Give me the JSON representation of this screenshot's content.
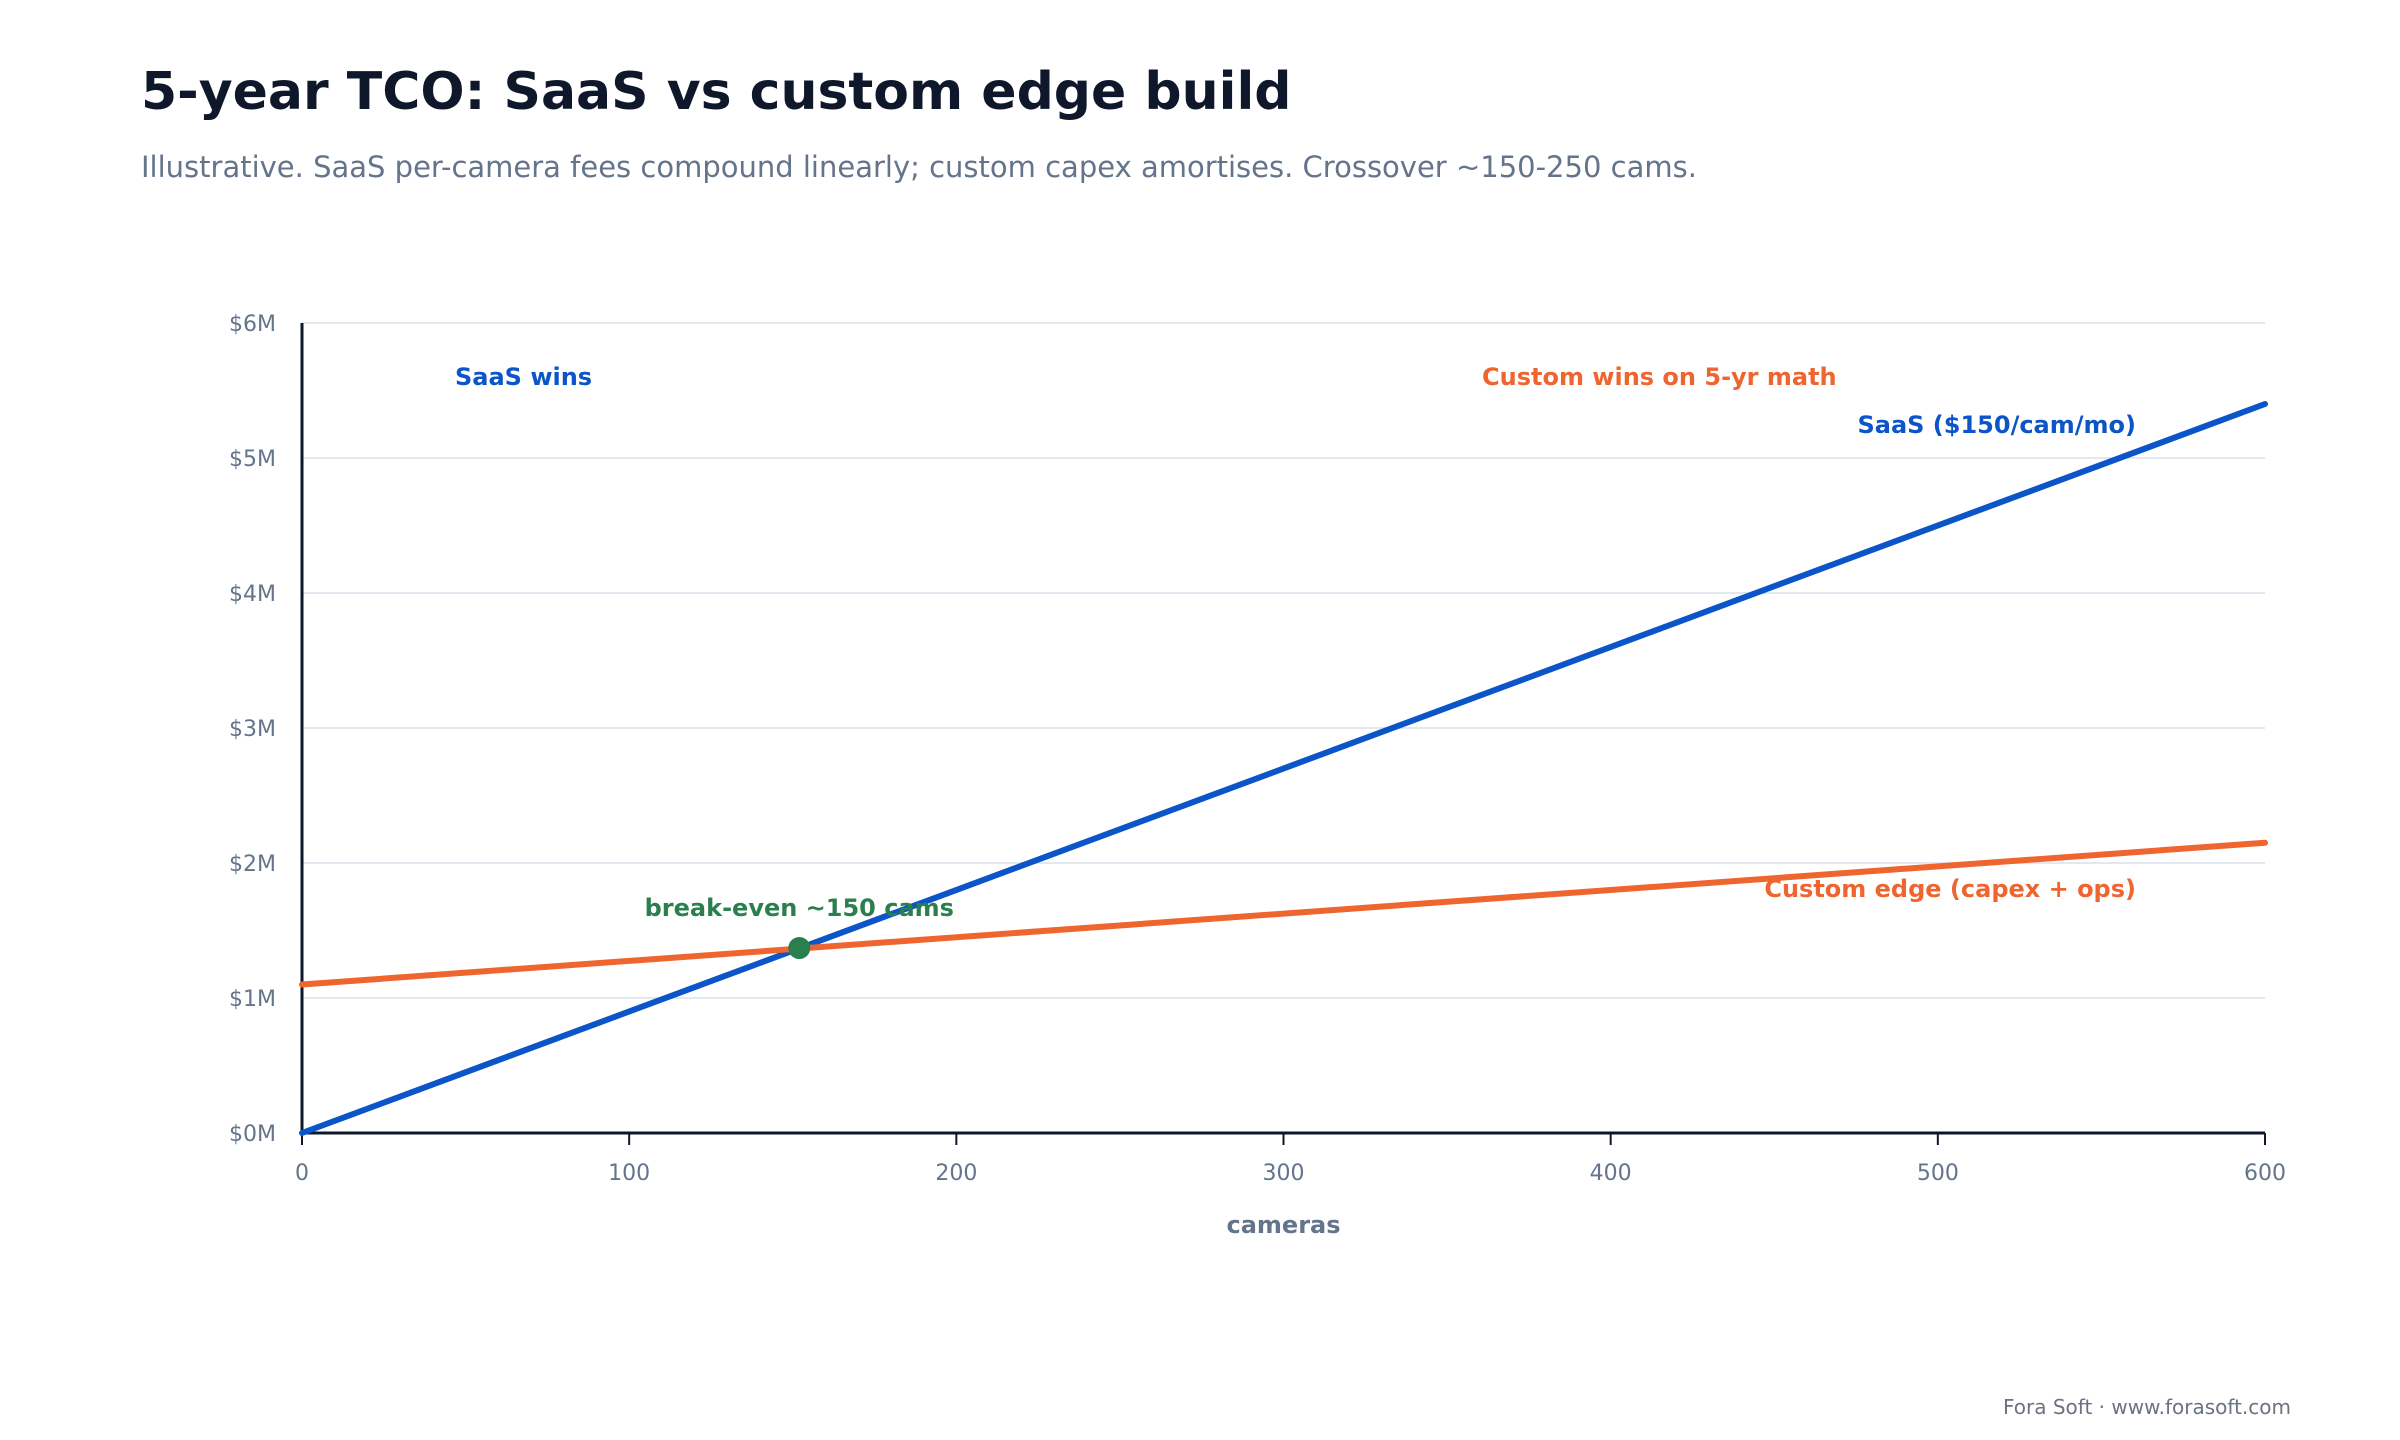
{
  "title": "5-year TCO: SaaS vs custom edge build",
  "subtitle": "Illustrative. SaaS per-camera fees compound linearly; custom capex amortises. Crossover ~150-250 cams.",
  "footer": "Fora Soft · www.forasoft.com",
  "colors": {
    "saas": "#0b55c9",
    "custom": "#ef6530",
    "breakeven": "#2a7f4f",
    "axis": "#0f172a",
    "grid": "#e2e8f0",
    "muted": "#64748b"
  },
  "chart_data": {
    "type": "line",
    "xlabel": "cameras",
    "ylabel": "",
    "xlim": [
      0,
      600
    ],
    "ylim": [
      0,
      6
    ],
    "x_ticks": [
      0,
      100,
      200,
      300,
      400,
      500,
      600
    ],
    "x_tick_labels": [
      "0",
      "100",
      "200",
      "300",
      "400",
      "500",
      "600"
    ],
    "y_ticks": [
      0,
      1,
      2,
      3,
      4,
      5,
      6
    ],
    "y_tick_labels": [
      "$0M",
      "$1M",
      "$2M",
      "$3M",
      "$4M",
      "$5M",
      "$6M"
    ],
    "grid": true,
    "series": [
      {
        "name": "SaaS ($150/cam/mo)",
        "color": "#0b55c9",
        "x": [
          0,
          600
        ],
        "y": [
          0,
          5.4
        ]
      },
      {
        "name": "Custom edge (capex + ops)",
        "color": "#ef6530",
        "x": [
          0,
          600
        ],
        "y": [
          1.1,
          2.15
        ]
      }
    ],
    "breakeven": {
      "label": "break-even ~150 cams",
      "x": 152,
      "y": 1.37
    },
    "region_labels": {
      "left": "SaaS wins",
      "right": "Custom wins on 5-yr math"
    }
  }
}
